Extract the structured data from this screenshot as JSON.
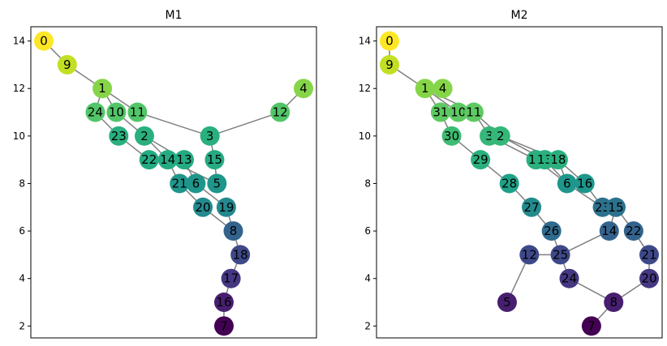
{
  "chart_data": [
    {
      "type": "graph",
      "title": "M1",
      "ylim": [
        1.5,
        14.6
      ],
      "xlim": [
        0,
        12.1
      ],
      "yticks": [
        2,
        4,
        6,
        8,
        10,
        12,
        14
      ],
      "nodes": [
        {
          "id": "0",
          "x": 0.5,
          "y": 14,
          "color": "#fde725"
        },
        {
          "id": "9",
          "x": 1.5,
          "y": 13,
          "color": "#c2df23"
        },
        {
          "id": "1",
          "x": 3.0,
          "y": 12,
          "color": "#86d549"
        },
        {
          "id": "4",
          "x": 11.6,
          "y": 12,
          "color": "#86d549"
        },
        {
          "id": "24",
          "x": 2.7,
          "y": 11,
          "color": "#52c569"
        },
        {
          "id": "10",
          "x": 3.6,
          "y": 11,
          "color": "#52c569"
        },
        {
          "id": "11",
          "x": 4.5,
          "y": 11,
          "color": "#52c569"
        },
        {
          "id": "12",
          "x": 10.6,
          "y": 11,
          "color": "#52c569"
        },
        {
          "id": "23",
          "x": 3.7,
          "y": 10,
          "color": "#2ab07f"
        },
        {
          "id": "2",
          "x": 4.8,
          "y": 10,
          "color": "#2ab07f"
        },
        {
          "id": "3",
          "x": 7.6,
          "y": 10,
          "color": "#2ab07f"
        },
        {
          "id": "22",
          "x": 5.0,
          "y": 9,
          "color": "#25ab82"
        },
        {
          "id": "14",
          "x": 5.8,
          "y": 9,
          "color": "#25ab82"
        },
        {
          "id": "13",
          "x": 6.5,
          "y": 9,
          "color": "#25ab82"
        },
        {
          "id": "15",
          "x": 7.8,
          "y": 9,
          "color": "#25ab82"
        },
        {
          "id": "21",
          "x": 6.3,
          "y": 8,
          "color": "#1f968b"
        },
        {
          "id": "6",
          "x": 7.0,
          "y": 8,
          "color": "#1f968b"
        },
        {
          "id": "5",
          "x": 7.9,
          "y": 8,
          "color": "#1f968b"
        },
        {
          "id": "20",
          "x": 7.3,
          "y": 7,
          "color": "#23898e"
        },
        {
          "id": "19",
          "x": 8.3,
          "y": 7,
          "color": "#23898e"
        },
        {
          "id": "8",
          "x": 8.6,
          "y": 6,
          "color": "#33638d"
        },
        {
          "id": "18",
          "x": 8.9,
          "y": 5,
          "color": "#3e4989"
        },
        {
          "id": "17",
          "x": 8.5,
          "y": 4,
          "color": "#453781"
        },
        {
          "id": "16",
          "x": 8.2,
          "y": 3,
          "color": "#481f70"
        },
        {
          "id": "7",
          "x": 8.2,
          "y": 2,
          "color": "#440154"
        }
      ],
      "edges": [
        [
          "0",
          "9"
        ],
        [
          "9",
          "1"
        ],
        [
          "1",
          "24"
        ],
        [
          "1",
          "10"
        ],
        [
          "1",
          "11"
        ],
        [
          "11",
          "3"
        ],
        [
          "3",
          "12"
        ],
        [
          "12",
          "4"
        ],
        [
          "3",
          "15"
        ],
        [
          "15",
          "5"
        ],
        [
          "24",
          "23"
        ],
        [
          "23",
          "22"
        ],
        [
          "22",
          "14"
        ],
        [
          "14",
          "21"
        ],
        [
          "21",
          "20"
        ],
        [
          "10",
          "2"
        ],
        [
          "2",
          "14"
        ],
        [
          "2",
          "13"
        ],
        [
          "13",
          "6"
        ],
        [
          "6",
          "19"
        ],
        [
          "14",
          "5"
        ],
        [
          "20",
          "8"
        ],
        [
          "19",
          "8"
        ],
        [
          "8",
          "18"
        ],
        [
          "18",
          "17"
        ],
        [
          "17",
          "16"
        ],
        [
          "16",
          "7"
        ]
      ]
    },
    {
      "type": "graph",
      "title": "M2",
      "ylim": [
        1.5,
        14.6
      ],
      "xlim": [
        0,
        12.1
      ],
      "yticks": [
        2,
        4,
        6,
        8,
        10,
        12,
        14
      ],
      "nodes": [
        {
          "id": "0",
          "x": 1.2,
          "y": 14,
          "color": "#fde725"
        },
        {
          "id": "9",
          "x": 1.2,
          "y": 13,
          "color": "#c2df23"
        },
        {
          "id": "1",
          "x": 2.8,
          "y": 12,
          "color": "#86d549"
        },
        {
          "id": "4",
          "x": 3.6,
          "y": 12,
          "color": "#86d549"
        },
        {
          "id": "31",
          "x": 3.5,
          "y": 11,
          "color": "#5ec962"
        },
        {
          "id": "10",
          "x": 4.3,
          "y": 11,
          "color": "#5ec962"
        },
        {
          "id": "11",
          "x": 5.0,
          "y": 11,
          "color": "#5ec962"
        },
        {
          "id": "30",
          "x": 4.0,
          "y": 10,
          "color": "#3dbc74"
        },
        {
          "id": "3",
          "x": 5.7,
          "y": 10,
          "color": "#35b779"
        },
        {
          "id": "2",
          "x": 6.2,
          "y": 10,
          "color": "#35b779"
        },
        {
          "id": "29",
          "x": 5.3,
          "y": 9,
          "color": "#2ab07f"
        },
        {
          "id": "19",
          "x": 7.8,
          "y": 9,
          "color": "#2ab07f"
        },
        {
          "id": "13",
          "x": 8.2,
          "y": 9,
          "color": "#2ab07f"
        },
        {
          "id": "18",
          "x": 8.8,
          "y": 9,
          "color": "#2ab07f"
        },
        {
          "id": "28",
          "x": 6.6,
          "y": 8,
          "color": "#1fa187"
        },
        {
          "id": "6",
          "x": 9.2,
          "y": 8,
          "color": "#1f968b"
        },
        {
          "id": "16",
          "x": 10.0,
          "y": 8,
          "color": "#1f968b"
        },
        {
          "id": "27",
          "x": 7.6,
          "y": 7,
          "color": "#238a8d"
        },
        {
          "id": "23",
          "x": 10.8,
          "y": 7,
          "color": "#2c728e"
        },
        {
          "id": "15",
          "x": 11.4,
          "y": 7,
          "color": "#2c728e"
        },
        {
          "id": "26",
          "x": 8.5,
          "y": 6,
          "color": "#2f6b8e"
        },
        {
          "id": "14",
          "x": 11.1,
          "y": 6,
          "color": "#33638d"
        },
        {
          "id": "22",
          "x": 12.2,
          "y": 6,
          "color": "#33638d"
        },
        {
          "id": "12",
          "x": 7.5,
          "y": 5,
          "color": "#3e4989"
        },
        {
          "id": "25",
          "x": 8.9,
          "y": 5,
          "color": "#3e4989"
        },
        {
          "id": "21",
          "x": 12.9,
          "y": 5,
          "color": "#3e4989"
        },
        {
          "id": "24",
          "x": 9.3,
          "y": 4,
          "color": "#453781"
        },
        {
          "id": "20",
          "x": 12.9,
          "y": 4,
          "color": "#453781"
        },
        {
          "id": "5",
          "x": 6.5,
          "y": 3,
          "color": "#481f70"
        },
        {
          "id": "8",
          "x": 11.3,
          "y": 3,
          "color": "#481f70"
        },
        {
          "id": "7",
          "x": 10.3,
          "y": 2,
          "color": "#440154"
        }
      ],
      "edges": [
        [
          "0",
          "9"
        ],
        [
          "9",
          "1"
        ],
        [
          "1",
          "4"
        ],
        [
          "1",
          "31"
        ],
        [
          "1",
          "10"
        ],
        [
          "1",
          "11"
        ],
        [
          "31",
          "30"
        ],
        [
          "30",
          "29"
        ],
        [
          "29",
          "28"
        ],
        [
          "28",
          "27"
        ],
        [
          "27",
          "26"
        ],
        [
          "26",
          "25"
        ],
        [
          "11",
          "3"
        ],
        [
          "11",
          "2"
        ],
        [
          "3",
          "19"
        ],
        [
          "2",
          "13"
        ],
        [
          "2",
          "18"
        ],
        [
          "19",
          "6"
        ],
        [
          "13",
          "6"
        ],
        [
          "18",
          "16"
        ],
        [
          "18",
          "6"
        ],
        [
          "6",
          "23"
        ],
        [
          "16",
          "23"
        ],
        [
          "23",
          "15"
        ],
        [
          "15",
          "14"
        ],
        [
          "15",
          "22"
        ],
        [
          "14",
          "25"
        ],
        [
          "22",
          "21"
        ],
        [
          "21",
          "20"
        ],
        [
          "20",
          "8"
        ],
        [
          "25",
          "12"
        ],
        [
          "25",
          "24"
        ],
        [
          "12",
          "5"
        ],
        [
          "24",
          "8"
        ],
        [
          "8",
          "7"
        ]
      ]
    }
  ]
}
